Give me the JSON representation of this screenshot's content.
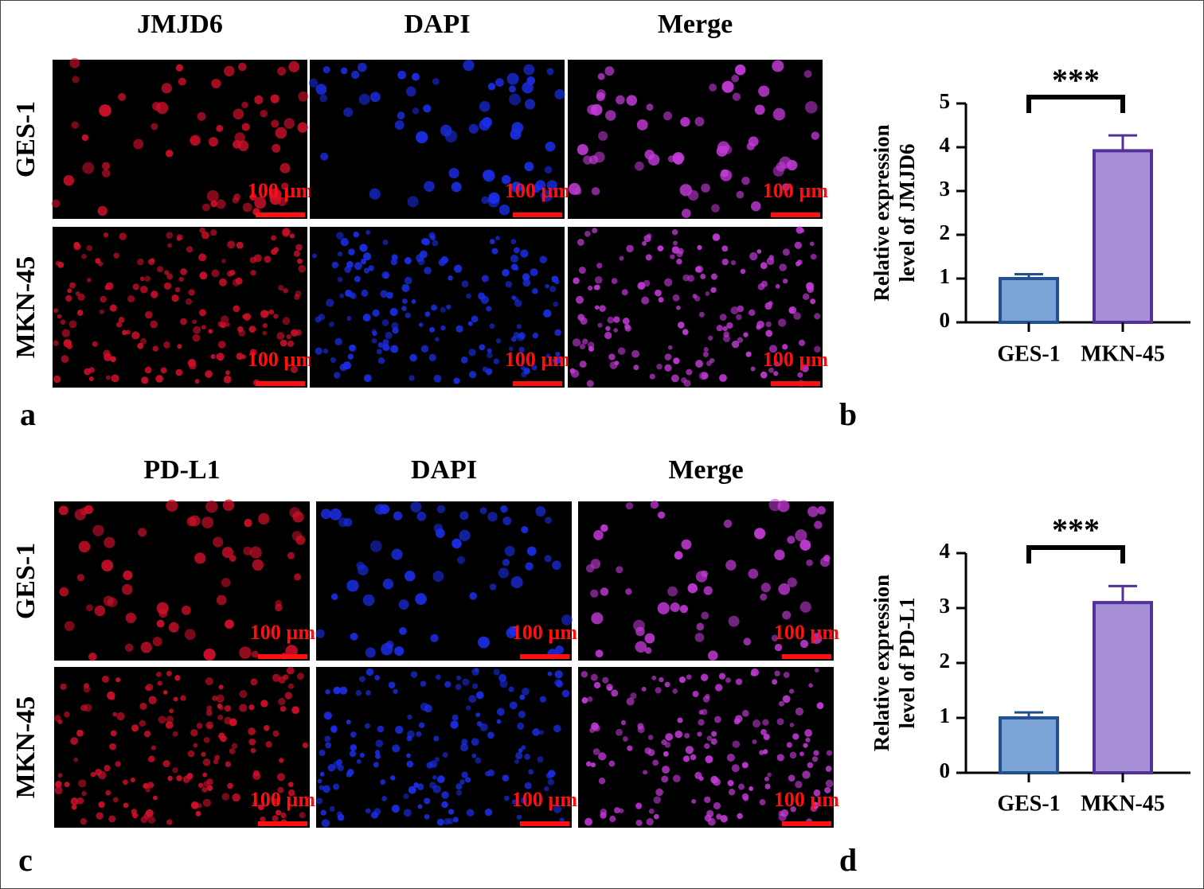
{
  "chart_data": [
    {
      "type": "bar",
      "panel": "b",
      "ylabel": [
        "Relative expression",
        "level of JMJD6"
      ],
      "categories": [
        "GES-1",
        "MKN-45"
      ],
      "values": [
        1.0,
        3.92
      ],
      "errors": [
        0.1,
        0.35
      ],
      "colors": [
        "#7ba3d6",
        "#a78fd6"
      ],
      "edge_colors": [
        "#23508f",
        "#54319a"
      ],
      "ylim": [
        0,
        5
      ],
      "yticks": [
        0,
        1,
        2,
        3,
        4,
        5
      ],
      "annotation": "***"
    },
    {
      "type": "bar",
      "panel": "d",
      "ylabel": [
        "Relative expression",
        "level of PD-L1"
      ],
      "categories": [
        "GES-1",
        "MKN-45"
      ],
      "values": [
        1.0,
        3.1
      ],
      "errors": [
        0.1,
        0.3
      ],
      "colors": [
        "#7ba3d6",
        "#a78fd6"
      ],
      "edge_colors": [
        "#23508f",
        "#54319a"
      ],
      "ylim": [
        0,
        4
      ],
      "yticks": [
        0,
        1,
        2,
        3,
        4
      ],
      "annotation": "***"
    }
  ],
  "figures": [
    {
      "panel": "a",
      "columns": [
        "JMJD6",
        "DAPI",
        "Merge"
      ],
      "rows": [
        "GES-1",
        "MKN-45"
      ],
      "scale": "100 µm"
    },
    {
      "panel": "c",
      "columns": [
        "PD-L1",
        "DAPI",
        "Merge"
      ],
      "rows": [
        "GES-1",
        "MKN-45"
      ],
      "scale": "100 µm"
    }
  ]
}
